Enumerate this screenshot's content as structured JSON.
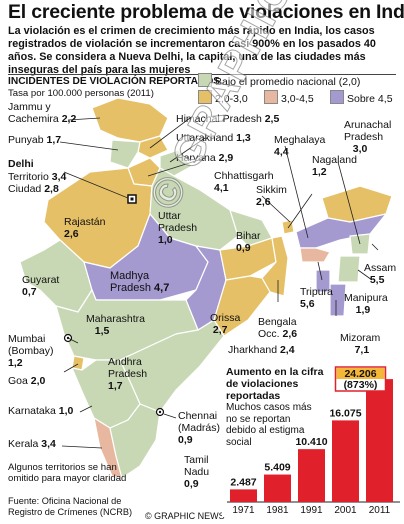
{
  "title": "El creciente problema de violaciones en India",
  "intro": "La violación es el crimen de crecimiento más rápido en India, los casos registrados de violación se incrementaron casi 900% en los pasados 40 años. Se considera a Nueva Delhi, la capital, una de las ciudades más inseguras del país para las mujeres",
  "map": {
    "heading": "INCIDENTES DE VIOLACIÓN REPORTADOS",
    "subheading": "Tasa por 100.000 personas (2011)",
    "legend": [
      {
        "label": "Bajo el promedio nacional (2,0)",
        "color": "#c8d8b4"
      },
      {
        "label": "2,0-3,0",
        "color": "#e6c066"
      },
      {
        "label": "3,0-4,5",
        "color": "#e8b7a0"
      },
      {
        "label": "Sobre 4,5",
        "color": "#a49ad0"
      }
    ],
    "regions": [
      {
        "name": "Jammu y Cachemira",
        "value": "2,2"
      },
      {
        "name": "Punyab",
        "value": "1,7"
      },
      {
        "name": "Delhi",
        "value": ""
      },
      {
        "name": "Territorio",
        "value": "3,4"
      },
      {
        "name": "Ciudad",
        "value": "2,8"
      },
      {
        "name": "Himachal Pradesh",
        "value": "2,5"
      },
      {
        "name": "Uttarakhand",
        "value": "1,3"
      },
      {
        "name": "Haryana",
        "value": "2,9"
      },
      {
        "name": "Chhattisgarh",
        "value": "4,1"
      },
      {
        "name": "Arunachal Pradesh",
        "value": "3,0"
      },
      {
        "name": "Meghalaya",
        "value": "4,4"
      },
      {
        "name": "Nagaland",
        "value": "1,2"
      },
      {
        "name": "Sikkim",
        "value": "2,6"
      },
      {
        "name": "Bihar",
        "value": "0,9"
      },
      {
        "name": "Rajastán",
        "value": "2,6"
      },
      {
        "name": "Uttar Pradesh",
        "value": "1,0"
      },
      {
        "name": "Assam",
        "value": "5,5"
      },
      {
        "name": "Manipura",
        "value": "1,9"
      },
      {
        "name": "Guyarat",
        "value": "0,7"
      },
      {
        "name": "Madhya Pradesh",
        "value": "4,7"
      },
      {
        "name": "Tripura",
        "value": "5,6"
      },
      {
        "name": "Maharashtra",
        "value": "1,5"
      },
      {
        "name": "Orissa",
        "value": "2,7"
      },
      {
        "name": "Bengala Occ.",
        "value": "2,6"
      },
      {
        "name": "Mizoram",
        "value": "7,1"
      },
      {
        "name": "Mumbai (Bombay)",
        "value": "1,2"
      },
      {
        "name": "Jharkhand",
        "value": "2,4"
      },
      {
        "name": "Goa",
        "value": "2,0"
      },
      {
        "name": "Andhra Pradesh",
        "value": "1,7"
      },
      {
        "name": "Karnataka",
        "value": "1,0"
      },
      {
        "name": "Chennai (Madrás)",
        "value": "0,9"
      },
      {
        "name": "Kerala",
        "value": "3,4"
      },
      {
        "name": "Tamil Nadu",
        "value": "0,9"
      }
    ],
    "note": "Algunos territorios se han omitido para mayor claridad",
    "watermark": "© GRAPHIC NEWS"
  },
  "chart_data": {
    "type": "bar",
    "title": "Aumento en la cifra de violaciones reportadas",
    "subtitle": "Muchos casos más no se reportan debido al estigma social",
    "categories": [
      "1971",
      "1981",
      "1991",
      "2001",
      "2011"
    ],
    "values": [
      2487,
      5409,
      10410,
      16075,
      24206
    ],
    "value_labels": [
      "2.487",
      "5.409",
      "10.410",
      "16.075",
      "24.206"
    ],
    "highlight": "(873%)",
    "ylim": [
      0,
      26000
    ],
    "color": "#e0202a"
  },
  "footer": {
    "source": "Fuente: Oficina Nacional de Registro de Crímenes (NCRB)",
    "credit": "© GRAPHIC NEWS"
  }
}
